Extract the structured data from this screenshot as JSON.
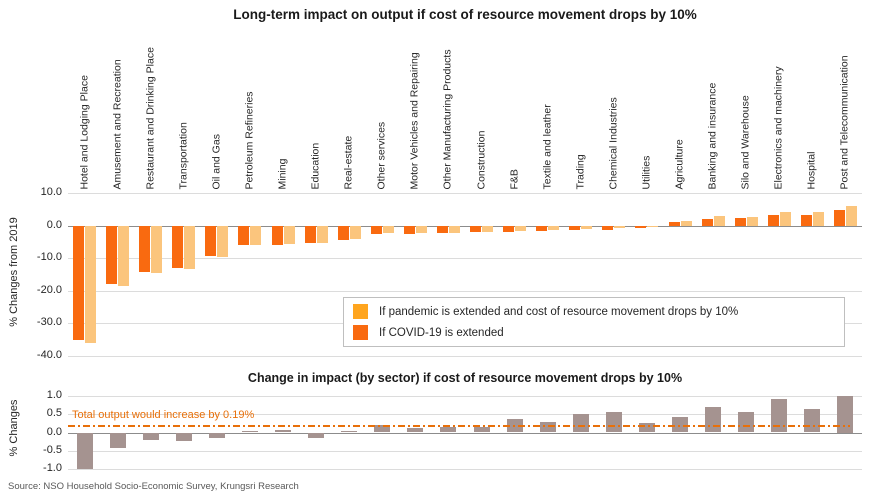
{
  "source": "Source: NSO Household Socio-Economic Survey, Krungsri Research",
  "background_color": "#FFFFFF",
  "chart_data": [
    {
      "type": "bar",
      "title": "Long-term impact on output if cost of resource movement drops by 10%",
      "xlabel": "",
      "ylabel": "% Changes from 2019",
      "ylim": [
        -40,
        10
      ],
      "yticks": [
        10.0,
        0.0,
        -10.0,
        -20.0,
        -30.0,
        -40.0
      ],
      "ytick_labels": [
        "10.0",
        "0.0",
        "-10.0",
        "-20.0",
        "-30.0",
        "-40.0"
      ],
      "grid": true,
      "legend_position": "inside-bottom-right",
      "categories": [
        "Hotel and Lodging Place",
        "Amusement and Recreation",
        "Restaurant and Drinking Place",
        "Transportation",
        "Oil and Gas",
        "Petroleum Refineries",
        "Mining",
        "Education",
        "Real-estate",
        "Other services",
        "Motor Vehicles and Repairing",
        "Other Manufacturing Products",
        "Construction",
        "F&B",
        "Textile and leather",
        "Trading",
        "Chemical Industries",
        "Utilities",
        "Agriculture",
        "Banking and insurance",
        "Silo and Warehouse",
        "Electronics and machinery",
        "Hospital",
        "Post and Telecommunication"
      ],
      "series": [
        {
          "name": "If pandemic is extended and cost of resource movement drops by 10%",
          "legend_color": "#FFA51E",
          "bar_color": "#FBC57D",
          "values": [
            -36.0,
            -18.4,
            -14.5,
            -13.2,
            -9.5,
            -5.95,
            -5.75,
            -5.45,
            -4.25,
            -2.4,
            -2.35,
            -2.15,
            -1.95,
            -1.65,
            -1.3,
            -1.0,
            -0.65,
            -0.55,
            1.45,
            2.8,
            2.75,
            4.1,
            4.05,
            5.9
          ]
        },
        {
          "name": "If COVID-19 is extended",
          "legend_color": "#F96A10",
          "bar_color": "#F96A10",
          "values": [
            -35.0,
            -18.0,
            -14.3,
            -13.0,
            -9.4,
            -6.0,
            -5.8,
            -5.3,
            -4.3,
            -2.6,
            -2.5,
            -2.3,
            -2.1,
            -2.0,
            -1.6,
            -1.5,
            -1.2,
            -0.8,
            1.0,
            2.1,
            2.2,
            3.2,
            3.4,
            4.9
          ]
        }
      ]
    },
    {
      "type": "bar",
      "title": "Change in impact (by sector) if cost of resource movement drops by 10%",
      "xlabel": "",
      "ylabel": "% Changes",
      "ylim": [
        -1.0,
        1.0
      ],
      "yticks": [
        1.0,
        0.5,
        0.0,
        -0.5,
        -1.0
      ],
      "ytick_labels": [
        "1.0",
        "0.5",
        "0.0",
        "-0.5",
        "-1.0"
      ],
      "grid": true,
      "bar_color": "#A59390",
      "categories": [
        "Hotel and Lodging Place",
        "Amusement and Recreation",
        "Restaurant and Drinking Place",
        "Transportation",
        "Oil and Gas",
        "Petroleum Refineries",
        "Mining",
        "Education",
        "Real-estate",
        "Other services",
        "Motor Vehicles and Repairing",
        "Other Manufacturing Products",
        "Construction",
        "F&B",
        "Textile and leather",
        "Trading",
        "Chemical Industries",
        "Utilities",
        "Agriculture",
        "Banking and insurance",
        "Silo and Warehouse",
        "Electronics and machinery",
        "Hospital",
        "Post and Telecommunication"
      ],
      "values": [
        -1.0,
        -0.42,
        -0.2,
        -0.23,
        -0.14,
        0.04,
        0.06,
        -0.15,
        0.05,
        0.2,
        0.13,
        0.15,
        0.14,
        0.36,
        0.29,
        0.52,
        0.55,
        0.26,
        0.43,
        0.71,
        0.56,
        0.91,
        0.65,
        1.0
      ],
      "annotation": {
        "text": "Total output would increase by 0.19%",
        "value": 0.19,
        "line_color": "#E8700A",
        "line_style": "dash-dot"
      }
    }
  ]
}
